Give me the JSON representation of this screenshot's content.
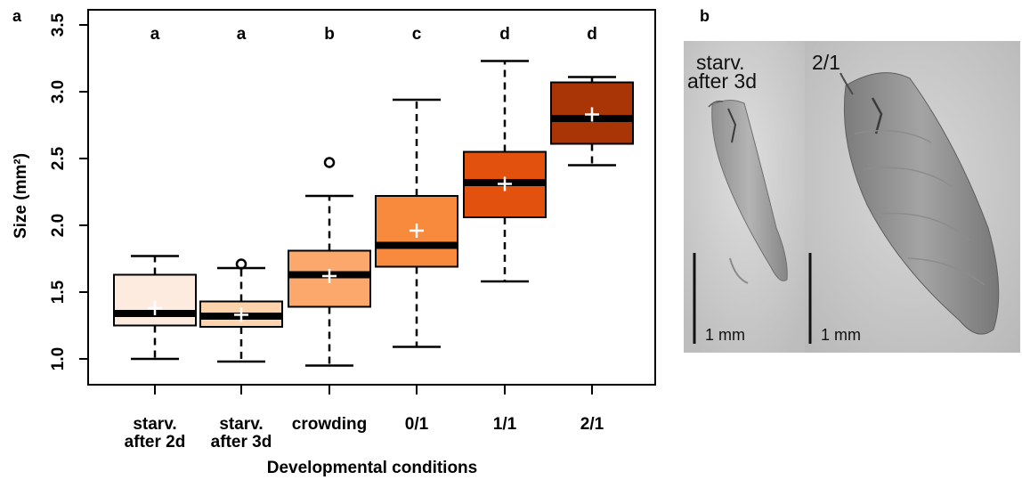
{
  "panel_a_label": "a",
  "panel_b_label": "b",
  "chart_data": {
    "type": "box",
    "title": "",
    "xlabel": "Developmental conditions",
    "ylabel": "Size (mm²)",
    "ylim": [
      0.88,
      3.5
    ],
    "yticks": [
      "1.0",
      "1.5",
      "2.0",
      "2.5",
      "3.0",
      "3.5"
    ],
    "grid": false,
    "categories": [
      [
        "starv.",
        "after 2d"
      ],
      [
        "starv.",
        "after 3d"
      ],
      [
        "crowding"
      ],
      [
        "0/1"
      ],
      [
        "1/1"
      ],
      [
        "2/1"
      ]
    ],
    "significance_letters": [
      "a",
      "a",
      "b",
      "c",
      "d",
      "d"
    ],
    "boxes": [
      {
        "whisker_low": 1.0,
        "q1": 1.25,
        "median": 1.34,
        "q3": 1.63,
        "whisker_high": 1.77,
        "mean": 1.38,
        "outliers": [],
        "color": "#FDEBDF"
      },
      {
        "whisker_low": 0.98,
        "q1": 1.24,
        "median": 1.32,
        "q3": 1.43,
        "whisker_high": 1.68,
        "mean": 1.33,
        "outliers": [
          1.71
        ],
        "color": "#FDD3AD"
      },
      {
        "whisker_low": 0.95,
        "q1": 1.39,
        "median": 1.63,
        "q3": 1.81,
        "whisker_high": 2.22,
        "mean": 1.62,
        "outliers": [
          2.47
        ],
        "color": "#FCA76B"
      },
      {
        "whisker_low": 1.09,
        "q1": 1.69,
        "median": 1.85,
        "q3": 2.22,
        "whisker_high": 2.94,
        "mean": 1.96,
        "outliers": [],
        "color": "#F88A3E"
      },
      {
        "whisker_low": 1.58,
        "q1": 2.06,
        "median": 2.32,
        "q3": 2.55,
        "whisker_high": 3.23,
        "mean": 2.31,
        "outliers": [],
        "color": "#E2520E"
      },
      {
        "whisker_low": 2.45,
        "q1": 2.61,
        "median": 2.8,
        "q3": 3.07,
        "whisker_high": 3.11,
        "mean": 2.83,
        "outliers": [],
        "color": "#A93405"
      }
    ]
  },
  "photos": [
    {
      "label_lines": [
        "starv.",
        "after 3d"
      ],
      "scale_label": "1 mm"
    },
    {
      "label_lines": [
        "2/1"
      ],
      "scale_label": "1 mm"
    }
  ]
}
